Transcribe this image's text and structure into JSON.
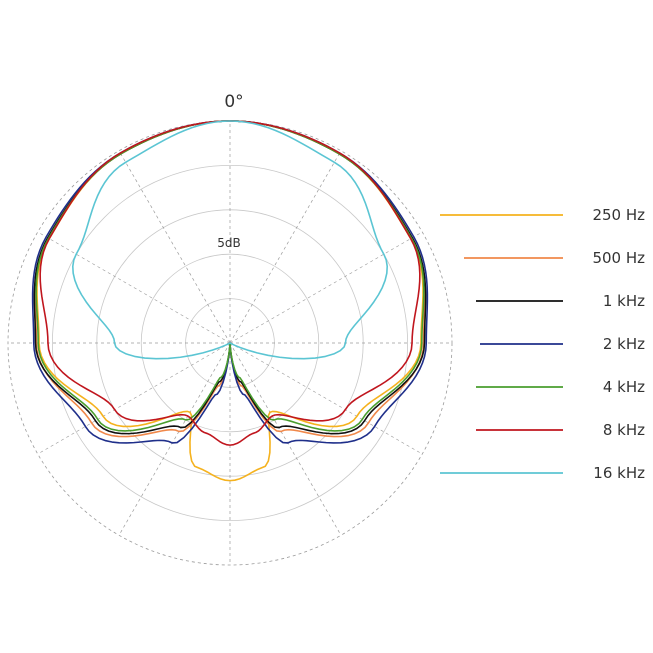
{
  "chart_data": {
    "type": "polar",
    "title": "",
    "angle_label": "0°",
    "ring_label": "5dB",
    "grid": true,
    "radial_range_db": [
      -25,
      0
    ],
    "ring_step_db": 5,
    "spoke_step_deg": 30,
    "legend_position": "right",
    "series": [
      {
        "name": "250 Hz",
        "color": "#f5b21e",
        "angles": [
          0,
          30,
          60,
          90,
          120,
          150,
          165,
          180
        ],
        "levels_db": [
          0,
          -0.4,
          -1.5,
          -3.5,
          -8.5,
          -16,
          -10.5,
          -9.5
        ]
      },
      {
        "name": "500 Hz",
        "color": "#f0884a",
        "angles": [
          0,
          30,
          60,
          90,
          120,
          150,
          165,
          180
        ],
        "levels_db": [
          0,
          -0.4,
          -1.4,
          -3.2,
          -7,
          -13.5,
          -20,
          -25
        ]
      },
      {
        "name": "1 kHz",
        "color": "#111111",
        "angles": [
          0,
          30,
          60,
          90,
          120,
          150,
          165,
          180
        ],
        "levels_db": [
          0,
          -0.4,
          -1.3,
          -3.1,
          -7.5,
          -14,
          -20.5,
          -25
        ]
      },
      {
        "name": "2 kHz",
        "color": "#1f2f8a",
        "angles": [
          0,
          30,
          60,
          90,
          120,
          150,
          165,
          180
        ],
        "levels_db": [
          0,
          -0.3,
          -1.1,
          -2.9,
          -6.2,
          -12,
          -19,
          -25
        ]
      },
      {
        "name": "4 kHz",
        "color": "#4a9e2e",
        "angles": [
          0,
          30,
          60,
          90,
          120,
          150,
          165,
          180
        ],
        "levels_db": [
          0,
          -0.4,
          -1.4,
          -3.4,
          -7.8,
          -15,
          -21,
          -25
        ]
      },
      {
        "name": "8 kHz",
        "color": "#c0161e",
        "angles": [
          0,
          30,
          60,
          90,
          120,
          150,
          165,
          180
        ],
        "levels_db": [
          0,
          -0.3,
          -1.5,
          -4.5,
          -10,
          -15.5,
          -14.5,
          -13.5
        ]
      },
      {
        "name": "16 kHz",
        "color": "#5bc5d3",
        "angles": [
          0,
          30,
          60,
          90,
          120,
          150,
          165,
          180
        ],
        "levels_db": [
          0,
          -1.5,
          -5,
          -12,
          -25,
          -25,
          -25,
          -25
        ]
      }
    ]
  }
}
